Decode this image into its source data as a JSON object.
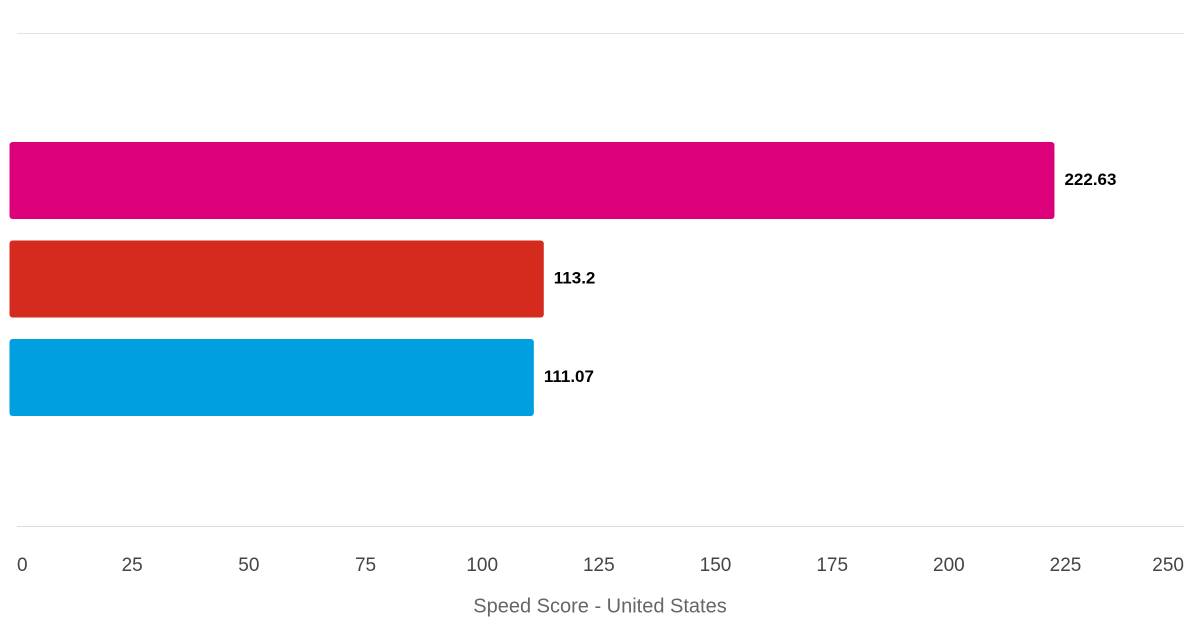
{
  "chart_data": {
    "type": "bar",
    "orientation": "horizontal",
    "categories": [
      null,
      null,
      null
    ],
    "values": [
      222.63,
      113.2,
      111.07
    ],
    "colors": [
      "#dc007b",
      "#d42b1e",
      "#009fdf"
    ],
    "xlabel": "Speed Score - United States",
    "xlim": [
      0,
      250
    ],
    "xticks": [
      0,
      25,
      50,
      75,
      100,
      125,
      150,
      175,
      200,
      225,
      250
    ],
    "grid": false
  }
}
